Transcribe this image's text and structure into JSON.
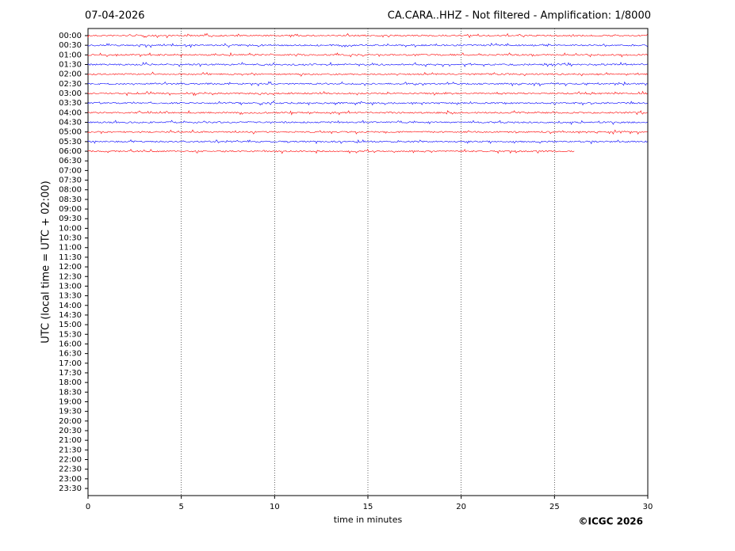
{
  "chart_data": {
    "type": "helicorder",
    "title": "07-04-2026",
    "subtitle": "CA.CARA..HHZ - Not filtered - Amplification: 1/8000",
    "xlabel": "time in minutes",
    "ylabel": "UTC (local time = UTC + 02:00)",
    "footer": "©ICGC 2026",
    "categories": [
      "00:00",
      "00:30",
      "01:00",
      "01:30",
      "02:00",
      "02:30",
      "03:00",
      "03:30",
      "04:00",
      "04:30",
      "05:00",
      "05:30",
      "06:00",
      "06:30",
      "07:00",
      "07:30",
      "08:00",
      "08:30",
      "09:00",
      "09:30",
      "10:00",
      "10:30",
      "11:00",
      "11:30",
      "12:00",
      "12:30",
      "13:00",
      "13:30",
      "14:00",
      "14:30",
      "15:00",
      "15:30",
      "16:00",
      "16:30",
      "17:00",
      "17:30",
      "18:00",
      "18:30",
      "19:00",
      "19:30",
      "20:00",
      "20:30",
      "21:00",
      "21:30",
      "22:00",
      "22:30",
      "23:00",
      "23:30"
    ],
    "values": [
      30,
      30,
      30,
      30,
      30,
      30,
      30,
      30,
      30,
      30,
      30,
      30,
      26.1,
      null,
      null,
      null,
      null,
      null,
      null,
      null,
      null,
      null,
      null,
      null,
      null,
      null,
      null,
      null,
      null,
      null,
      null,
      null,
      null,
      null,
      null,
      null,
      null,
      null,
      null,
      null,
      null,
      null,
      null,
      null,
      null,
      null,
      null,
      null
    ],
    "colors": [
      "#ff0000",
      "#0000ff"
    ],
    "xlim": [
      0,
      30
    ],
    "xticks": [
      0,
      5,
      10,
      15,
      20,
      25,
      30
    ],
    "grid": true
  }
}
